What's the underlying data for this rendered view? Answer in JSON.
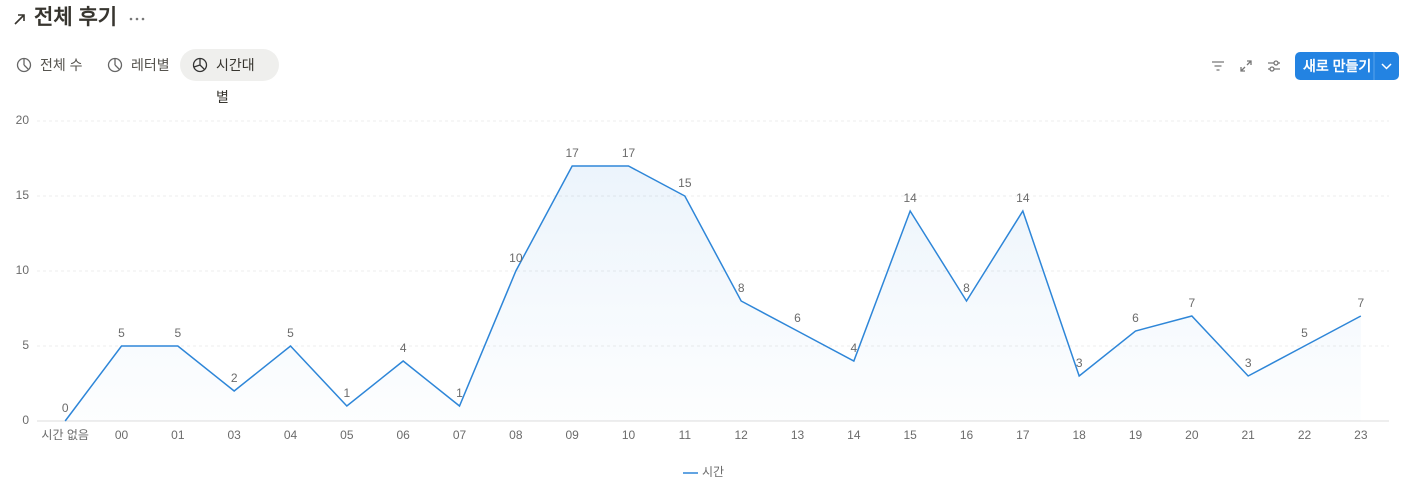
{
  "header": {
    "title": "전체 후기"
  },
  "tabs": [
    "전체 수",
    "레터별",
    "시간대별"
  ],
  "actions": {
    "new_button": "새로 만들기"
  },
  "chart_data": {
    "type": "line",
    "categories": [
      "시간 없음",
      "00",
      "01",
      "03",
      "04",
      "05",
      "06",
      "07",
      "08",
      "09",
      "10",
      "11",
      "12",
      "13",
      "14",
      "15",
      "16",
      "17",
      "18",
      "19",
      "20",
      "21",
      "22",
      "23"
    ],
    "series": [
      {
        "name": "시간",
        "color": "#2e86d8",
        "values": [
          0,
          5,
          5,
          2,
          5,
          1,
          4,
          1,
          10,
          17,
          17,
          15,
          8,
          6,
          4,
          14,
          8,
          14,
          3,
          6,
          7,
          3,
          5,
          7
        ]
      }
    ],
    "ylim": [
      0,
      20
    ],
    "yticks": [
      0,
      5,
      10,
      15,
      20
    ],
    "grid": true,
    "legend": "bottom"
  }
}
